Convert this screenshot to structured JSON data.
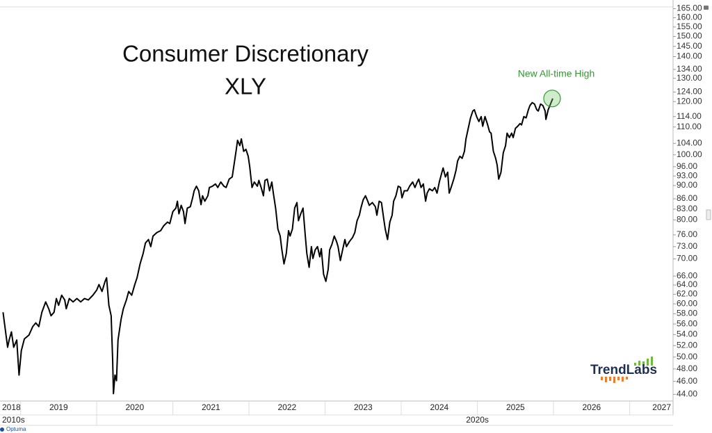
{
  "chart_data": {
    "type": "line",
    "title": "Consumer Discretionary",
    "subtitle": "XLY",
    "annotation": "New All-time High",
    "logo": "TrendLabs",
    "source": "Optuma",
    "log_scale": true,
    "xlim": [
      2018.73,
      2027.57
    ],
    "ylim": [
      43,
      166
    ],
    "xticks": [
      2018,
      2019,
      2020,
      2021,
      2022,
      2023,
      2024,
      2025,
      2026,
      2027
    ],
    "decades": [
      {
        "value": 2010,
        "label": "2010s"
      },
      {
        "value": 2020,
        "label": "2020s"
      }
    ],
    "yticks": [
      {
        "value": 165,
        "label": "165.00"
      },
      {
        "value": 160,
        "label": "160.00"
      },
      {
        "value": 155,
        "label": "155.00"
      },
      {
        "value": 150,
        "label": "150.00"
      },
      {
        "value": 145,
        "label": "145.00"
      },
      {
        "value": 140,
        "label": "140.00"
      },
      {
        "value": 134,
        "label": "134.00"
      },
      {
        "value": 130,
        "label": "130.00"
      },
      {
        "value": 124,
        "label": "124.00"
      },
      {
        "value": 120,
        "label": "120.00"
      },
      {
        "value": 114,
        "label": "114.00"
      },
      {
        "value": 110,
        "label": "110.00"
      },
      {
        "value": 104,
        "label": "104.00"
      },
      {
        "value": 100,
        "label": "100.00"
      },
      {
        "value": 96,
        "label": "96.00"
      },
      {
        "value": 93,
        "label": "93.00"
      },
      {
        "value": 90,
        "label": "90.00"
      },
      {
        "value": 86,
        "label": "86.00"
      },
      {
        "value": 83,
        "label": "83.00"
      },
      {
        "value": 80,
        "label": "80.00"
      },
      {
        "value": 76,
        "label": "76.00"
      },
      {
        "value": 73,
        "label": "73.00"
      },
      {
        "value": 70,
        "label": "70.00"
      },
      {
        "value": 66,
        "label": "66.00"
      },
      {
        "value": 64,
        "label": "64.00"
      },
      {
        "value": 62,
        "label": "62.00"
      },
      {
        "value": 60,
        "label": "60.00"
      },
      {
        "value": 58,
        "label": "58.00"
      },
      {
        "value": 56,
        "label": "56.00"
      },
      {
        "value": 54,
        "label": "54.00"
      },
      {
        "value": 52,
        "label": "52.00"
      },
      {
        "value": 50,
        "label": "50.00"
      },
      {
        "value": 48,
        "label": "48.00"
      },
      {
        "value": 46,
        "label": "46.00"
      },
      {
        "value": 44,
        "label": "44.00"
      }
    ],
    "x": [
      2018.77,
      2018.8,
      2018.83,
      2018.85,
      2018.88,
      2018.91,
      2018.95,
      2018.98,
      2019.01,
      2019.05,
      2019.11,
      2019.16,
      2019.2,
      2019.24,
      2019.28,
      2019.33,
      2019.37,
      2019.4,
      2019.44,
      2019.47,
      2019.5,
      2019.54,
      2019.58,
      2019.6,
      2019.64,
      2019.69,
      2019.74,
      2019.79,
      2019.84,
      2019.89,
      2019.95,
      2020.0,
      2020.03,
      2020.07,
      2020.11,
      2020.13,
      2020.16,
      2020.19,
      2020.21,
      2020.22,
      2020.24,
      2020.26,
      2020.28,
      2020.32,
      2020.35,
      2020.39,
      2020.42,
      2020.46,
      2020.5,
      2020.53,
      2020.57,
      2020.61,
      2020.64,
      2020.68,
      2020.71,
      2020.74,
      2020.79,
      2020.84,
      2020.88,
      2020.93,
      2020.96,
      2021.0,
      2021.04,
      2021.06,
      2021.08,
      2021.11,
      2021.14,
      2021.16,
      2021.19,
      2021.23,
      2021.26,
      2021.28,
      2021.31,
      2021.34,
      2021.37,
      2021.39,
      2021.42,
      2021.46,
      2021.48,
      2021.52,
      2021.56,
      2021.59,
      2021.63,
      2021.67,
      2021.7,
      2021.74,
      2021.78,
      2021.8,
      2021.83,
      2021.85,
      2021.88,
      2021.9,
      2021.93,
      2021.96,
      2021.99,
      2022.01,
      2022.04,
      2022.07,
      2022.11,
      2022.13,
      2022.16,
      2022.19,
      2022.21,
      2022.24,
      2022.27,
      2022.3,
      2022.32,
      2022.35,
      2022.38,
      2022.41,
      2022.43,
      2022.46,
      2022.49,
      2022.52,
      2022.54,
      2022.57,
      2022.6,
      2022.63,
      2022.65,
      2022.68,
      2022.71,
      2022.74,
      2022.76,
      2022.79,
      2022.82,
      2022.84,
      2022.87,
      2022.9,
      2022.93,
      2022.95,
      2022.98,
      2023.01,
      2023.04,
      2023.06,
      2023.09,
      2023.12,
      2023.15,
      2023.17,
      2023.2,
      2023.23,
      2023.26,
      2023.28,
      2023.32,
      2023.36,
      2023.39,
      2023.42,
      2023.45,
      2023.47,
      2023.5,
      2023.53,
      2023.56,
      2023.58,
      2023.62,
      2023.66,
      2023.68,
      2023.71,
      2023.74,
      2023.77,
      2023.79,
      2023.82,
      2023.85,
      2023.88,
      2023.9,
      2023.93,
      2023.96,
      2023.99,
      2024.01,
      2024.04,
      2024.08,
      2024.11,
      2024.15,
      2024.18,
      2024.21,
      2024.23,
      2024.26,
      2024.29,
      2024.32,
      2024.34,
      2024.37,
      2024.41,
      2024.44,
      2024.47,
      2024.5,
      2024.53,
      2024.55,
      2024.58,
      2024.61,
      2024.63,
      2024.66,
      2024.69,
      2024.72,
      2024.74,
      2024.77,
      2024.8,
      2024.83,
      2024.85,
      2024.88,
      2024.91,
      2024.94,
      2024.96,
      2024.99,
      2025.02,
      2025.05,
      2025.07,
      2025.1,
      2025.13,
      2025.16,
      2025.18,
      2025.21,
      2025.24,
      2025.26,
      2025.28,
      2025.31,
      2025.34,
      2025.37,
      2025.39,
      2025.42,
      2025.45,
      2025.47,
      2025.5,
      2025.53,
      2025.56,
      2025.58,
      2025.61,
      2025.64,
      2025.67,
      2025.69,
      2025.72,
      2025.75,
      2025.78,
      2025.8,
      2025.83,
      2025.86,
      2025.89,
      2025.9,
      2025.93,
      2025.96,
      2025.99
    ],
    "series": [
      {
        "color": "#000000",
        "values": [
          58.3,
          54.9,
          51.7,
          53.0,
          54.5,
          51.7,
          53.0,
          47.0,
          51.1,
          53.2,
          53.9,
          55.5,
          56.2,
          55.5,
          58.3,
          60.4,
          59.0,
          57.6,
          58.3,
          61.1,
          59.7,
          61.8,
          60.8,
          59.0,
          61.1,
          60.4,
          61.1,
          60.4,
          61.1,
          60.8,
          61.8,
          62.9,
          64.1,
          62.6,
          64.8,
          65.6,
          59.7,
          57.6,
          49.3,
          44.1,
          47.0,
          46.1,
          53.0,
          56.9,
          59.0,
          60.8,
          62.6,
          61.8,
          64.1,
          65.6,
          68.8,
          71.3,
          73.9,
          74.8,
          73.0,
          75.7,
          76.6,
          77.1,
          78.4,
          79.4,
          79.0,
          82.3,
          83.3,
          85.3,
          81.7,
          84.1,
          82.3,
          79.0,
          83.3,
          83.7,
          86.3,
          88.4,
          89.8,
          88.4,
          84.3,
          86.9,
          85.3,
          86.9,
          89.4,
          89.8,
          90.5,
          89.4,
          91.1,
          89.8,
          89.4,
          92.0,
          92.7,
          96.0,
          101.2,
          105.1,
          103.2,
          105.6,
          101.2,
          101.9,
          99.5,
          96.0,
          89.4,
          91.1,
          89.8,
          91.6,
          89.4,
          86.9,
          91.6,
          92.0,
          88.4,
          91.1,
          87.7,
          83.3,
          77.5,
          75.7,
          72.5,
          68.8,
          71.3,
          77.1,
          75.7,
          77.5,
          83.3,
          84.9,
          79.8,
          81.7,
          83.3,
          75.7,
          71.3,
          68.0,
          73.0,
          70.1,
          72.2,
          73.0,
          70.5,
          72.5,
          66.4,
          64.8,
          67.5,
          72.2,
          73.6,
          75.7,
          74.3,
          73.0,
          69.6,
          72.2,
          74.8,
          73.0,
          74.3,
          75.3,
          76.6,
          79.8,
          81.3,
          83.3,
          85.7,
          86.9,
          85.3,
          84.1,
          84.9,
          83.7,
          81.3,
          85.3,
          84.9,
          80.3,
          77.5,
          74.8,
          79.4,
          81.3,
          85.3,
          86.9,
          89.8,
          89.4,
          86.3,
          88.4,
          88.4,
          89.8,
          91.1,
          89.4,
          91.1,
          92.0,
          89.4,
          90.5,
          85.3,
          87.7,
          89.0,
          88.4,
          89.4,
          87.7,
          91.1,
          93.8,
          95.6,
          92.7,
          94.2,
          87.7,
          89.8,
          92.0,
          94.9,
          97.9,
          99.5,
          98.8,
          101.2,
          105.6,
          109.5,
          113.5,
          116.2,
          116.7,
          114.0,
          112.1,
          114.0,
          110.3,
          114.0,
          111.3,
          108.2,
          107.7,
          101.2,
          98.8,
          96.5,
          92.0,
          94.2,
          100.7,
          103.2,
          107.7,
          106.1,
          107.7,
          106.1,
          109.5,
          110.3,
          111.3,
          110.8,
          114.0,
          113.5,
          116.7,
          118.4,
          119.6,
          119.0,
          116.7,
          116.2,
          119.0,
          118.4,
          116.2,
          112.9,
          116.7,
          119.0,
          121.3
        ]
      }
    ]
  }
}
